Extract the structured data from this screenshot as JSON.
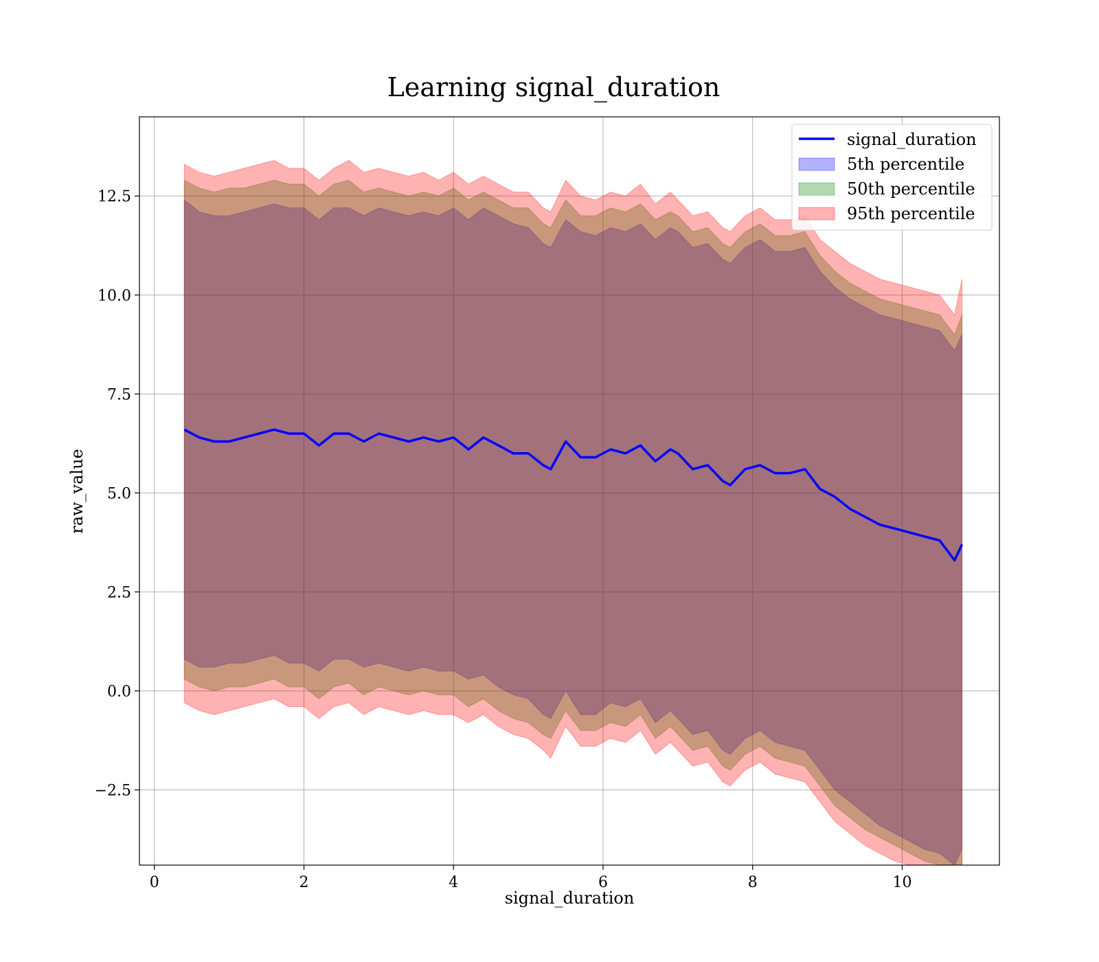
{
  "chart_data": {
    "type": "area",
    "title": "Learning signal_duration",
    "xlabel": "signal_duration",
    "ylabel": "raw_value",
    "xlim": [
      -0.2,
      11.3
    ],
    "ylim": [
      -4.4,
      14.5
    ],
    "xticks": [
      0,
      2,
      4,
      6,
      8,
      10
    ],
    "xtick_labels": [
      "0",
      "2",
      "4",
      "6",
      "8",
      "10"
    ],
    "yticks": [
      -2.5,
      0.0,
      2.5,
      5.0,
      7.5,
      10.0,
      12.5
    ],
    "ytick_labels": [
      "−2.5",
      "0.0",
      "2.5",
      "5.0",
      "7.5",
      "10.0",
      "12.5"
    ],
    "grid": true,
    "legend_position": "top-right",
    "x": [
      0.4,
      0.6,
      0.8,
      1.0,
      1.2,
      1.4,
      1.6,
      1.8,
      2.0,
      2.2,
      2.4,
      2.6,
      2.8,
      3.0,
      3.2,
      3.4,
      3.6,
      3.8,
      4.0,
      4.2,
      4.4,
      4.6,
      4.8,
      5.0,
      5.2,
      5.3,
      5.5,
      5.7,
      5.9,
      6.1,
      6.3,
      6.5,
      6.7,
      6.9,
      7.0,
      7.2,
      7.4,
      7.6,
      7.7,
      7.9,
      8.1,
      8.3,
      8.5,
      8.7,
      8.9,
      9.1,
      9.3,
      9.5,
      9.7,
      9.9,
      10.1,
      10.3,
      10.5,
      10.7,
      10.8
    ],
    "series": [
      {
        "name": "signal_duration",
        "kind": "line",
        "color": "#0000ff",
        "y": [
          6.6,
          6.4,
          6.3,
          6.3,
          6.4,
          6.5,
          6.6,
          6.5,
          6.5,
          6.2,
          6.5,
          6.5,
          6.3,
          6.5,
          6.4,
          6.3,
          6.4,
          6.3,
          6.4,
          6.1,
          6.4,
          6.2,
          6.0,
          6.0,
          5.7,
          5.6,
          6.3,
          5.9,
          5.9,
          6.1,
          6.0,
          6.2,
          5.8,
          6.1,
          6.0,
          5.6,
          5.7,
          5.3,
          5.2,
          5.6,
          5.7,
          5.5,
          5.5,
          5.6,
          5.1,
          4.9,
          4.6,
          4.4,
          4.2,
          4.1,
          4.0,
          3.9,
          3.8,
          3.3,
          3.7
        ]
      },
      {
        "name": "5th percentile",
        "kind": "band",
        "color": "#0000ff",
        "lower": [
          0.8,
          0.6,
          0.6,
          0.7,
          0.7,
          0.8,
          0.9,
          0.7,
          0.7,
          0.5,
          0.8,
          0.8,
          0.6,
          0.7,
          0.6,
          0.5,
          0.6,
          0.5,
          0.5,
          0.3,
          0.4,
          0.1,
          -0.1,
          -0.2,
          -0.6,
          -0.7,
          0.0,
          -0.6,
          -0.6,
          -0.3,
          -0.4,
          -0.2,
          -0.8,
          -0.5,
          -0.7,
          -1.1,
          -1.0,
          -1.5,
          -1.6,
          -1.2,
          -1.0,
          -1.3,
          -1.4,
          -1.5,
          -2.0,
          -2.5,
          -2.8,
          -3.1,
          -3.4,
          -3.6,
          -3.8,
          -4.0,
          -4.1,
          -4.4,
          -4.0
        ],
        "upper": [
          12.4,
          12.1,
          12.0,
          12.0,
          12.1,
          12.2,
          12.3,
          12.2,
          12.2,
          11.9,
          12.2,
          12.2,
          12.0,
          12.2,
          12.1,
          12.0,
          12.1,
          12.0,
          12.2,
          11.9,
          12.2,
          12.0,
          11.8,
          11.7,
          11.3,
          11.2,
          11.9,
          11.6,
          11.5,
          11.7,
          11.6,
          11.8,
          11.4,
          11.7,
          11.6,
          11.2,
          11.3,
          10.9,
          10.8,
          11.2,
          11.4,
          11.1,
          11.1,
          11.2,
          10.6,
          10.2,
          9.9,
          9.7,
          9.5,
          9.4,
          9.3,
          9.2,
          9.1,
          8.6,
          9.0
        ]
      },
      {
        "name": "50th percentile",
        "kind": "band",
        "color": "#008000",
        "lower": [
          0.3,
          0.1,
          0.0,
          0.1,
          0.1,
          0.2,
          0.3,
          0.1,
          0.1,
          -0.2,
          0.1,
          0.2,
          -0.1,
          0.1,
          0.0,
          -0.1,
          0.0,
          -0.1,
          -0.1,
          -0.4,
          -0.2,
          -0.5,
          -0.7,
          -0.8,
          -1.1,
          -1.2,
          -0.5,
          -1.0,
          -1.0,
          -0.8,
          -0.9,
          -0.6,
          -1.2,
          -0.9,
          -1.1,
          -1.5,
          -1.4,
          -1.9,
          -2.0,
          -1.6,
          -1.4,
          -1.7,
          -1.8,
          -1.9,
          -2.4,
          -2.9,
          -3.2,
          -3.5,
          -3.7,
          -3.9,
          -4.1,
          -4.3,
          -4.4,
          -4.4,
          -4.4
        ],
        "upper": [
          12.9,
          12.7,
          12.6,
          12.7,
          12.7,
          12.8,
          12.9,
          12.8,
          12.8,
          12.5,
          12.8,
          12.9,
          12.6,
          12.7,
          12.6,
          12.5,
          12.6,
          12.5,
          12.7,
          12.4,
          12.6,
          12.4,
          12.2,
          12.2,
          11.8,
          11.7,
          12.4,
          12.0,
          12.0,
          12.2,
          12.1,
          12.3,
          11.9,
          12.1,
          12.0,
          11.6,
          11.7,
          11.3,
          11.2,
          11.6,
          11.8,
          11.5,
          11.5,
          11.6,
          11.0,
          10.6,
          10.3,
          10.1,
          9.9,
          9.8,
          9.7,
          9.6,
          9.5,
          9.0,
          9.5
        ]
      },
      {
        "name": "95th percentile",
        "kind": "band",
        "color": "#ff0000",
        "lower": [
          -0.3,
          -0.5,
          -0.6,
          -0.5,
          -0.4,
          -0.3,
          -0.2,
          -0.4,
          -0.4,
          -0.7,
          -0.4,
          -0.3,
          -0.6,
          -0.4,
          -0.5,
          -0.6,
          -0.5,
          -0.6,
          -0.6,
          -0.8,
          -0.6,
          -0.9,
          -1.1,
          -1.2,
          -1.5,
          -1.7,
          -0.9,
          -1.4,
          -1.4,
          -1.2,
          -1.3,
          -1.0,
          -1.6,
          -1.3,
          -1.5,
          -1.9,
          -1.8,
          -2.3,
          -2.4,
          -2.0,
          -1.8,
          -2.1,
          -2.2,
          -2.3,
          -2.8,
          -3.3,
          -3.6,
          -3.9,
          -4.1,
          -4.3,
          -4.4,
          -4.4,
          -4.4,
          -4.4,
          -4.4
        ],
        "upper": [
          13.3,
          13.1,
          13.0,
          13.1,
          13.2,
          13.3,
          13.4,
          13.2,
          13.2,
          12.9,
          13.2,
          13.4,
          13.1,
          13.2,
          13.1,
          13.0,
          13.1,
          12.9,
          13.1,
          12.8,
          13.0,
          12.8,
          12.6,
          12.6,
          12.2,
          12.1,
          12.9,
          12.5,
          12.4,
          12.6,
          12.5,
          12.8,
          12.3,
          12.6,
          12.4,
          12.0,
          12.1,
          11.7,
          11.6,
          12.0,
          12.2,
          11.9,
          11.9,
          12.0,
          11.4,
          11.1,
          10.8,
          10.6,
          10.4,
          10.3,
          10.2,
          10.1,
          10.0,
          9.5,
          10.4
        ]
      }
    ]
  }
}
